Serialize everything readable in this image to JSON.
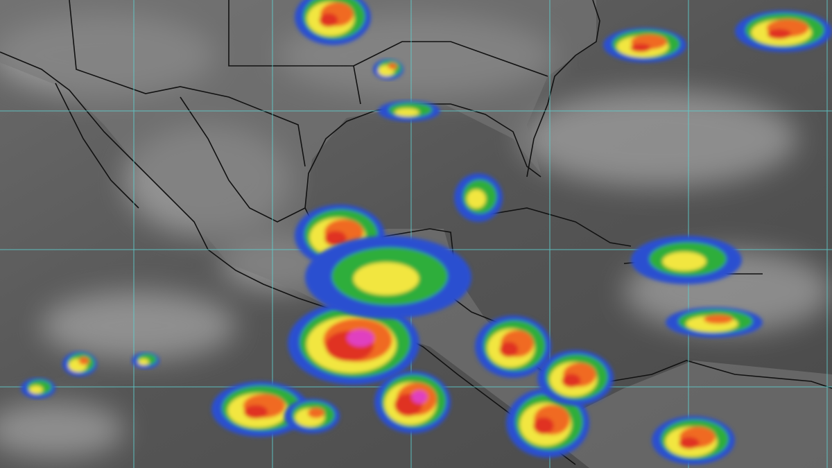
{
  "map": {
    "kind": "infrared satellite image",
    "colors": {
      "background": "#5a5a5a",
      "land_light": "#8a8a8a",
      "cloud_white": "#d8d8d8",
      "grid": "#5fd0d0",
      "coast": "#111111",
      "cold_blue": "#2a4fd0",
      "cold_green": "#2fae3a",
      "cold_yellow": "#f2e640",
      "cold_orange": "#f06a20",
      "cold_red": "#e03020",
      "cold_magenta": "#e040c0"
    },
    "storms": [
      {
        "id": "pacific-storm-main",
        "intensity": "magenta"
      },
      {
        "id": "pacific-storm-south",
        "intensity": "magenta"
      },
      {
        "id": "bay-of-campeche",
        "intensity": "orange"
      },
      {
        "id": "panama-colombia",
        "intensity": "red"
      },
      {
        "id": "costa-rica-caribbean",
        "intensity": "red"
      },
      {
        "id": "pacific-west-cluster",
        "intensity": "red"
      },
      {
        "id": "oklahoma-cell",
        "intensity": "orange"
      },
      {
        "id": "atlantic-east",
        "intensity": "orange"
      },
      {
        "id": "caribbean-east",
        "intensity": "orange"
      },
      {
        "id": "venezuela",
        "intensity": "orange"
      }
    ]
  }
}
